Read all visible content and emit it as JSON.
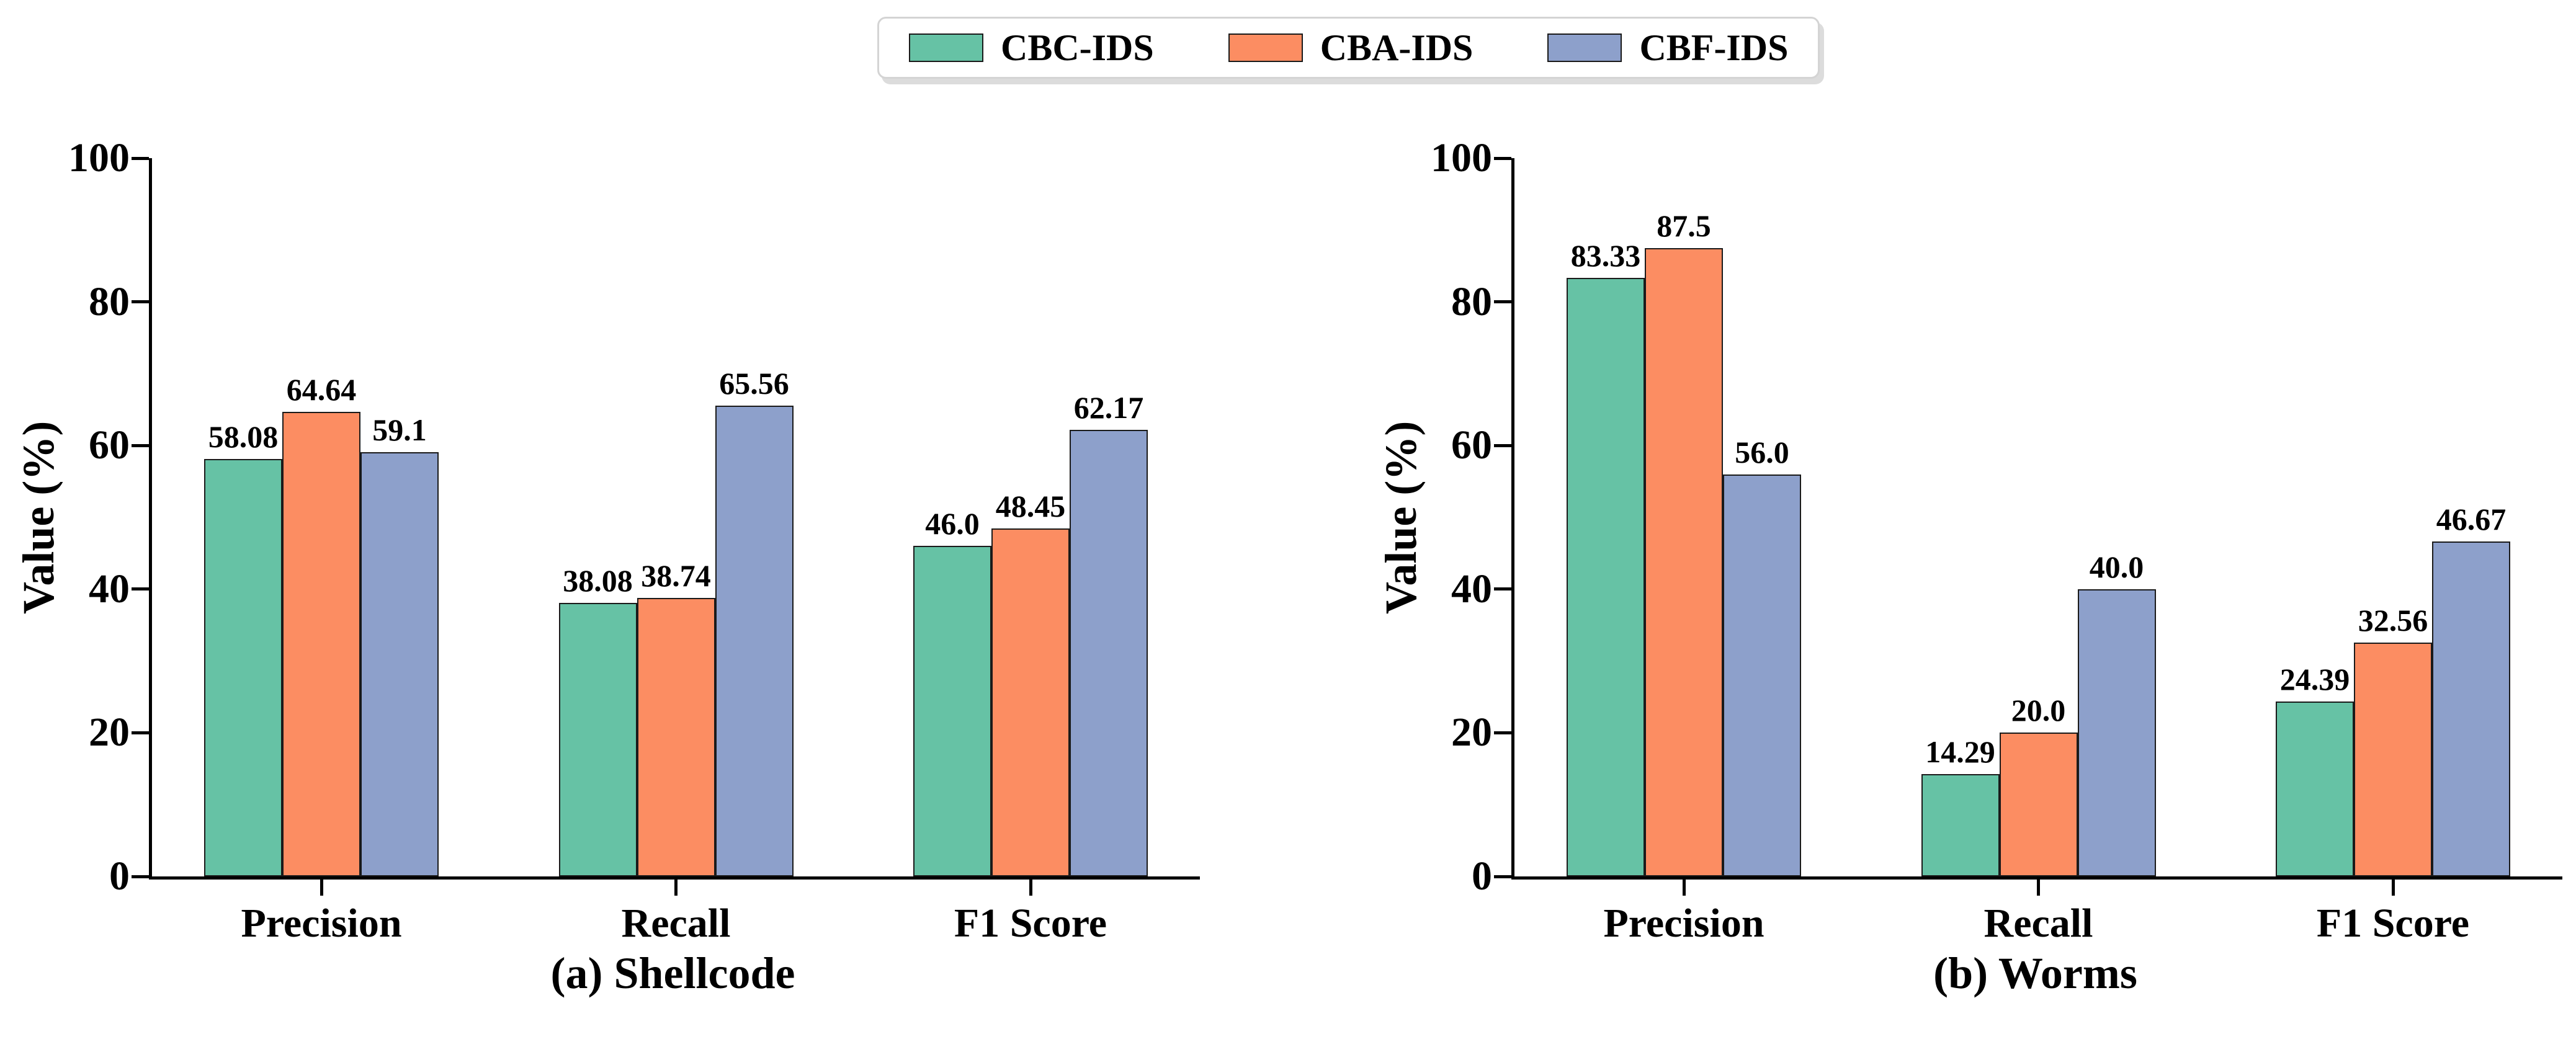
{
  "legend": {
    "items": [
      {
        "label": "CBC-IDS",
        "color": "#66c2a5"
      },
      {
        "label": "CBA-IDS",
        "color": "#fc8d62"
      },
      {
        "label": "CBF-IDS",
        "color": "#8da0cb"
      }
    ]
  },
  "chart_data": [
    {
      "type": "bar",
      "caption": "(a) Shellcode",
      "ylabel": "Value (%)",
      "xlabel": "",
      "ylim": [
        0,
        100
      ],
      "yticks": [
        0,
        20,
        40,
        60,
        80,
        100
      ],
      "grid": false,
      "legend_position": "upper center shared",
      "categories": [
        "Precision",
        "Recall",
        "F1 Score"
      ],
      "series": [
        {
          "name": "CBC-IDS",
          "color": "#66c2a5",
          "values": [
            58.08,
            38.08,
            46.0
          ],
          "labels": [
            "58.08",
            "38.08",
            "46.0"
          ]
        },
        {
          "name": "CBA-IDS",
          "color": "#fc8d62",
          "values": [
            64.64,
            38.74,
            48.45
          ],
          "labels": [
            "64.64",
            "38.74",
            "48.45"
          ]
        },
        {
          "name": "CBF-IDS",
          "color": "#8da0cb",
          "values": [
            59.1,
            65.56,
            62.17
          ],
          "labels": [
            "59.1",
            "65.56",
            "62.17"
          ]
        }
      ]
    },
    {
      "type": "bar",
      "caption": "(b) Worms",
      "ylabel": "Value (%)",
      "xlabel": "",
      "ylim": [
        0,
        100
      ],
      "yticks": [
        0,
        20,
        40,
        60,
        80,
        100
      ],
      "grid": false,
      "legend_position": "upper center shared",
      "categories": [
        "Precision",
        "Recall",
        "F1 Score"
      ],
      "series": [
        {
          "name": "CBC-IDS",
          "color": "#66c2a5",
          "values": [
            83.33,
            14.29,
            24.39
          ],
          "labels": [
            "83.33",
            "14.29",
            "24.39"
          ]
        },
        {
          "name": "CBA-IDS",
          "color": "#fc8d62",
          "values": [
            87.5,
            20.0,
            32.56
          ],
          "labels": [
            "87.5",
            "20.0",
            "32.56"
          ]
        },
        {
          "name": "CBF-IDS",
          "color": "#8da0cb",
          "values": [
            56.0,
            40.0,
            46.67
          ],
          "labels": [
            "56.0",
            "40.0",
            "46.67"
          ]
        }
      ]
    }
  ]
}
